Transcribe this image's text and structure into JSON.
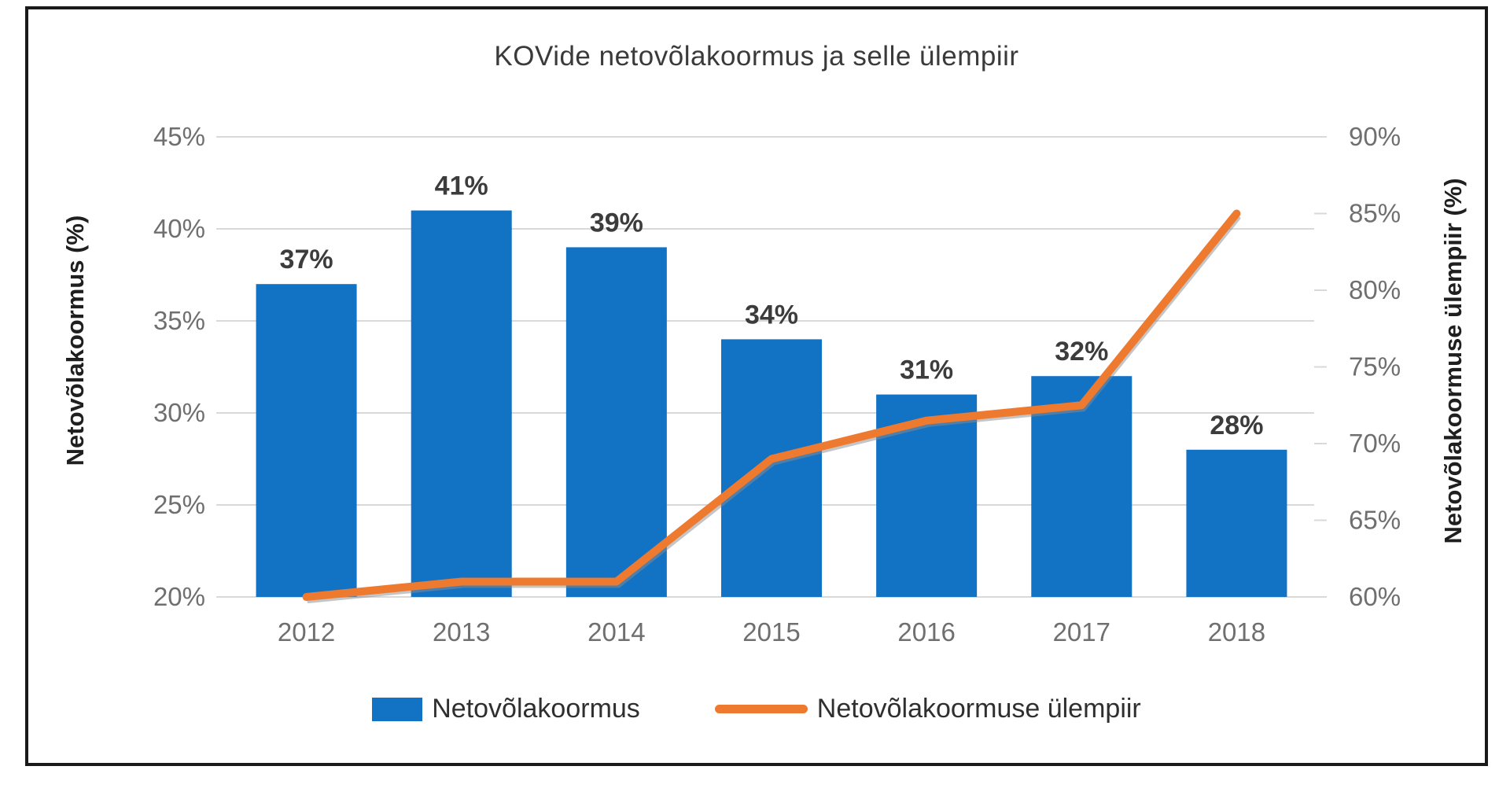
{
  "title": "KOVide netovõlakoormus ja selle ülempiir",
  "chart_data": {
    "type": "combo_bar_line",
    "categories": [
      "2012",
      "2013",
      "2014",
      "2015",
      "2016",
      "2017",
      "2018"
    ],
    "series": [
      {
        "name": "Netovõlakoormus",
        "type": "bar",
        "axis": "left",
        "values": [
          37,
          41,
          39,
          34,
          31,
          32,
          28
        ],
        "data_labels": [
          "37%",
          "41%",
          "39%",
          "34%",
          "31%",
          "32%",
          "28%"
        ],
        "color": "#1272C4"
      },
      {
        "name": "Netovõlakoormuse ülempiir",
        "type": "line",
        "axis": "right",
        "values": [
          60,
          61,
          61,
          69,
          71.5,
          72.5,
          85
        ],
        "color": "#ED7A2E"
      }
    ],
    "left_axis": {
      "title": "Netovõlakoormus (%)",
      "min": 20,
      "max": 45,
      "ticks": [
        "45%",
        "40%",
        "35%",
        "30%",
        "25%",
        "20%"
      ]
    },
    "right_axis": {
      "title": "Netovõlakoormuse ülempiir (%)",
      "min": 60,
      "max": 90,
      "ticks": [
        "90%",
        "85%",
        "80%",
        "75%",
        "70%",
        "65%",
        "60%"
      ]
    },
    "grid": true,
    "legend_position": "bottom"
  },
  "legend": {
    "items": [
      {
        "label": "Netovõlakoormus",
        "marker": "rect",
        "color": "#1272C4"
      },
      {
        "label": "Netovõlakoormuse ülempiir",
        "marker": "line",
        "color": "#ED7A2E"
      }
    ]
  },
  "colors": {
    "bar": "#1272C4",
    "line": "#ED7A2E",
    "line_shadow": "#8c8c8c",
    "grid": "#D9D9D9",
    "tick_text": "#6F6F6F",
    "data_label": "#3C3C3C",
    "title_text": "#3A3A3A",
    "axis_title": "#1F1F1F",
    "frame_border": "#1A1A1A"
  }
}
